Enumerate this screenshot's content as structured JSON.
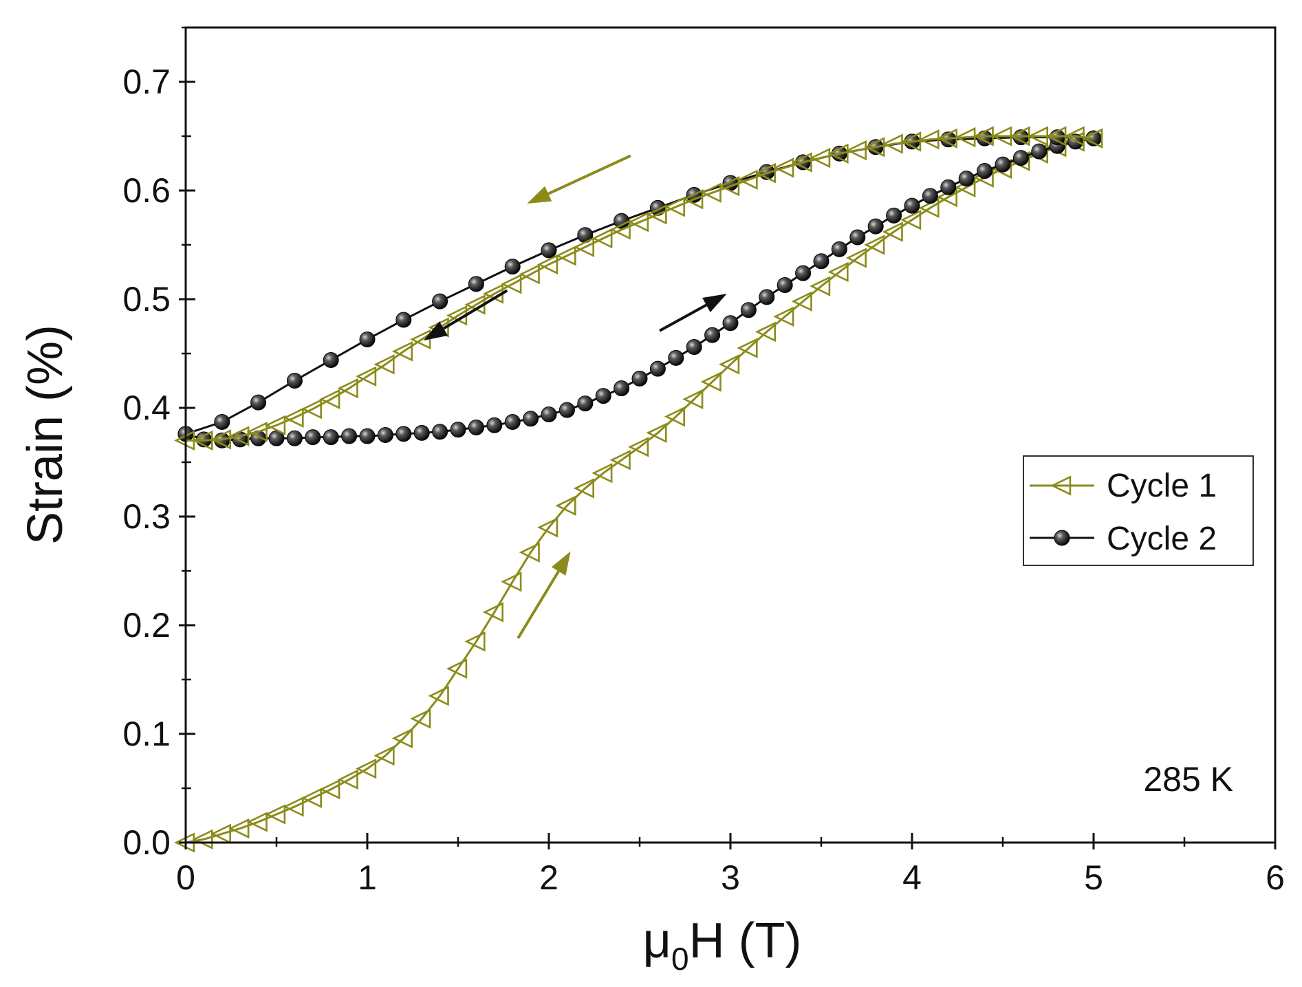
{
  "chart_data": {
    "type": "line",
    "title": "",
    "xlabel_main": "μ",
    "xlabel_sub": "0",
    "xlabel_rest": "H (T)",
    "ylabel": "Strain (%)",
    "xlim": [
      0,
      6
    ],
    "ylim": [
      0,
      0.75
    ],
    "x_ticks": [
      0,
      1,
      2,
      3,
      4,
      5,
      6
    ],
    "x_tick_labels": [
      "0",
      "1",
      "2",
      "3",
      "4",
      "5",
      "6"
    ],
    "y_ticks": [
      0,
      0.1,
      0.2,
      0.3,
      0.4,
      0.5,
      0.6,
      0.7
    ],
    "y_tick_labels": [
      "0.0",
      "0.1",
      "0.2",
      "0.3",
      "0.4",
      "0.5",
      "0.6",
      "0.7"
    ],
    "legend_position": "center-right",
    "annotation": "285 K",
    "series": [
      {
        "name": "Cycle 1",
        "color": "#8b8b1a",
        "marker": "triangle-left-open",
        "up": {
          "x": [
            0,
            0.1,
            0.2,
            0.3,
            0.4,
            0.5,
            0.6,
            0.7,
            0.8,
            0.9,
            1.0,
            1.1,
            1.2,
            1.3,
            1.4,
            1.5,
            1.6,
            1.7,
            1.8,
            1.9,
            2.0,
            2.1,
            2.2,
            2.3,
            2.4,
            2.5,
            2.6,
            2.7,
            2.8,
            2.9,
            3.0,
            3.1,
            3.2,
            3.3,
            3.4,
            3.5,
            3.6,
            3.7,
            3.8,
            3.9,
            4.0,
            4.1,
            4.2,
            4.3,
            4.4,
            4.5,
            4.6,
            4.7,
            4.8,
            4.9,
            5.0
          ],
          "y": [
            0.0,
            0.003,
            0.008,
            0.013,
            0.019,
            0.026,
            0.033,
            0.041,
            0.049,
            0.058,
            0.068,
            0.08,
            0.096,
            0.114,
            0.135,
            0.16,
            0.185,
            0.212,
            0.24,
            0.267,
            0.29,
            0.31,
            0.326,
            0.34,
            0.352,
            0.364,
            0.377,
            0.392,
            0.408,
            0.424,
            0.44,
            0.455,
            0.47,
            0.484,
            0.498,
            0.512,
            0.525,
            0.538,
            0.55,
            0.562,
            0.573,
            0.584,
            0.594,
            0.603,
            0.612,
            0.62,
            0.627,
            0.634,
            0.64,
            0.645,
            0.648
          ]
        },
        "down": {
          "x": [
            5.0,
            4.9,
            4.8,
            4.7,
            4.6,
            4.5,
            4.4,
            4.3,
            4.2,
            4.1,
            4.0,
            3.9,
            3.8,
            3.7,
            3.6,
            3.5,
            3.4,
            3.3,
            3.2,
            3.1,
            3.0,
            2.9,
            2.8,
            2.7,
            2.6,
            2.5,
            2.4,
            2.3,
            2.2,
            2.1,
            2.0,
            1.9,
            1.8,
            1.7,
            1.6,
            1.5,
            1.4,
            1.3,
            1.2,
            1.1,
            1.0,
            0.9,
            0.8,
            0.7,
            0.6,
            0.5,
            0.4,
            0.3,
            0.2,
            0.1,
            0
          ],
          "y": [
            0.648,
            0.65,
            0.65,
            0.65,
            0.65,
            0.65,
            0.65,
            0.649,
            0.648,
            0.647,
            0.645,
            0.643,
            0.64,
            0.637,
            0.634,
            0.63,
            0.626,
            0.621,
            0.616,
            0.61,
            0.604,
            0.598,
            0.592,
            0.585,
            0.578,
            0.571,
            0.564,
            0.556,
            0.548,
            0.54,
            0.532,
            0.523,
            0.514,
            0.505,
            0.495,
            0.485,
            0.474,
            0.463,
            0.452,
            0.44,
            0.429,
            0.418,
            0.408,
            0.399,
            0.391,
            0.384,
            0.378,
            0.374,
            0.371,
            0.37,
            0.37
          ]
        }
      },
      {
        "name": "Cycle 2",
        "color": "#111111",
        "marker": "sphere",
        "up": {
          "x": [
            0,
            0.1,
            0.2,
            0.3,
            0.4,
            0.5,
            0.6,
            0.7,
            0.8,
            0.9,
            1.0,
            1.1,
            1.2,
            1.3,
            1.4,
            1.5,
            1.6,
            1.7,
            1.8,
            1.9,
            2.0,
            2.1,
            2.2,
            2.3,
            2.4,
            2.5,
            2.6,
            2.7,
            2.8,
            2.9,
            3.0,
            3.1,
            3.2,
            3.3,
            3.4,
            3.5,
            3.6,
            3.7,
            3.8,
            3.9,
            4.0,
            4.1,
            4.2,
            4.3,
            4.4,
            4.5,
            4.6,
            4.7,
            4.8,
            4.9,
            5.0
          ],
          "y": [
            0.376,
            0.371,
            0.37,
            0.371,
            0.372,
            0.372,
            0.372,
            0.373,
            0.373,
            0.374,
            0.374,
            0.375,
            0.376,
            0.377,
            0.378,
            0.38,
            0.382,
            0.384,
            0.387,
            0.39,
            0.394,
            0.398,
            0.404,
            0.411,
            0.418,
            0.427,
            0.436,
            0.446,
            0.456,
            0.467,
            0.478,
            0.49,
            0.502,
            0.513,
            0.524,
            0.535,
            0.546,
            0.557,
            0.567,
            0.577,
            0.586,
            0.595,
            0.603,
            0.611,
            0.618,
            0.624,
            0.63,
            0.636,
            0.641,
            0.645,
            0.648
          ]
        },
        "down": {
          "x": [
            5.0,
            4.8,
            4.6,
            4.4,
            4.2,
            4.0,
            3.8,
            3.6,
            3.4,
            3.2,
            3.0,
            2.8,
            2.6,
            2.4,
            2.2,
            2.0,
            1.8,
            1.6,
            1.4,
            1.2,
            1.0,
            0.8,
            0.6,
            0.4,
            0.2,
            0
          ],
          "y": [
            0.648,
            0.649,
            0.649,
            0.648,
            0.647,
            0.645,
            0.64,
            0.634,
            0.626,
            0.617,
            0.607,
            0.596,
            0.584,
            0.572,
            0.559,
            0.545,
            0.53,
            0.514,
            0.498,
            0.481,
            0.463,
            0.444,
            0.425,
            0.405,
            0.387,
            0.376
          ]
        }
      }
    ],
    "arrows": [
      {
        "color": "#8b8b1a",
        "from": [
          1.83,
          0.188
        ],
        "to": [
          2.12,
          0.268
        ]
      },
      {
        "color": "#8b8b1a",
        "from": [
          2.45,
          0.632
        ],
        "to": [
          1.88,
          0.588
        ]
      },
      {
        "color": "#111111",
        "from": [
          1.77,
          0.508
        ],
        "to": [
          1.31,
          0.462
        ]
      },
      {
        "color": "#111111",
        "from": [
          2.61,
          0.471
        ],
        "to": [
          2.98,
          0.505
        ]
      }
    ]
  }
}
